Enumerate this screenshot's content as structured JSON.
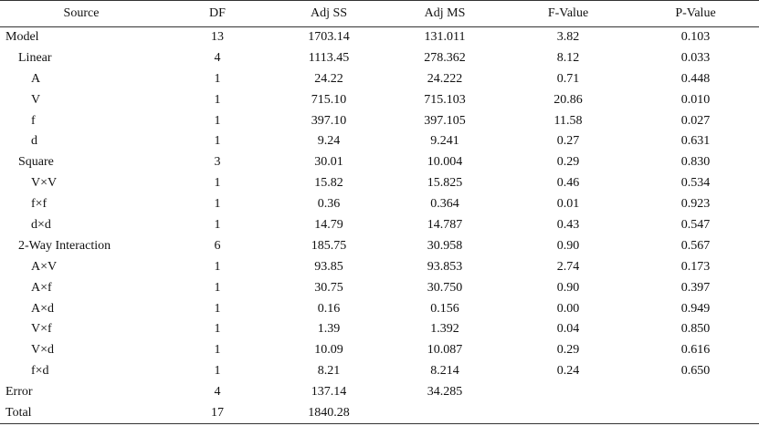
{
  "headers": {
    "source": "Source",
    "df": "DF",
    "adj_ss": "Adj SS",
    "adj_ms": "Adj MS",
    "f_value": "F-Value",
    "p_value": "P-Value"
  },
  "rows": [
    {
      "source": "Model",
      "df": "13",
      "ss": "1703.14",
      "ms": "131.011",
      "f": "3.82",
      "p": "0.103"
    },
    {
      "source": "Linear",
      "df": "4",
      "ss": "1113.45",
      "ms": "278.362",
      "f": "8.12",
      "p": "0.033"
    },
    {
      "source": "A",
      "df": "1",
      "ss": "24.22",
      "ms": "24.222",
      "f": "0.71",
      "p": "0.448"
    },
    {
      "source": "V",
      "df": "1",
      "ss": "715.10",
      "ms": "715.103",
      "f": "20.86",
      "p": "0.010"
    },
    {
      "source": "f",
      "df": "1",
      "ss": "397.10",
      "ms": "397.105",
      "f": "11.58",
      "p": "0.027"
    },
    {
      "source": "d",
      "df": "1",
      "ss": "9.24",
      "ms": "9.241",
      "f": "0.27",
      "p": "0.631"
    },
    {
      "source": "Square",
      "df": "3",
      "ss": "30.01",
      "ms": "10.004",
      "f": "0.29",
      "p": "0.830"
    },
    {
      "source": "V×V",
      "df": "1",
      "ss": "15.82",
      "ms": "15.825",
      "f": "0.46",
      "p": "0.534"
    },
    {
      "source": "f×f",
      "df": "1",
      "ss": "0.36",
      "ms": "0.364",
      "f": "0.01",
      "p": "0.923"
    },
    {
      "source": "d×d",
      "df": "1",
      "ss": "14.79",
      "ms": "14.787",
      "f": "0.43",
      "p": "0.547"
    },
    {
      "source": "2-Way Interaction",
      "df": "6",
      "ss": "185.75",
      "ms": "30.958",
      "f": "0.90",
      "p": "0.567"
    },
    {
      "source": "A×V",
      "df": "1",
      "ss": "93.85",
      "ms": "93.853",
      "f": "2.74",
      "p": "0.173"
    },
    {
      "source": "A×f",
      "df": "1",
      "ss": "30.75",
      "ms": "30.750",
      "f": "0.90",
      "p": "0.397"
    },
    {
      "source": "A×d",
      "df": "1",
      "ss": "0.16",
      "ms": "0.156",
      "f": "0.00",
      "p": "0.949"
    },
    {
      "source": "V×f",
      "df": "1",
      "ss": "1.39",
      "ms": "1.392",
      "f": "0.04",
      "p": "0.850"
    },
    {
      "source": "V×d",
      "df": "1",
      "ss": "10.09",
      "ms": "10.087",
      "f": "0.29",
      "p": "0.616"
    },
    {
      "source": "f×d",
      "df": "1",
      "ss": "8.21",
      "ms": "8.214",
      "f": "0.24",
      "p": "0.650"
    },
    {
      "source": "Error",
      "df": "4",
      "ss": "137.14",
      "ms": "34.285",
      "f": "",
      "p": ""
    },
    {
      "source": "Total",
      "df": "17",
      "ss": "1840.28",
      "ms": "",
      "f": "",
      "p": ""
    }
  ]
}
